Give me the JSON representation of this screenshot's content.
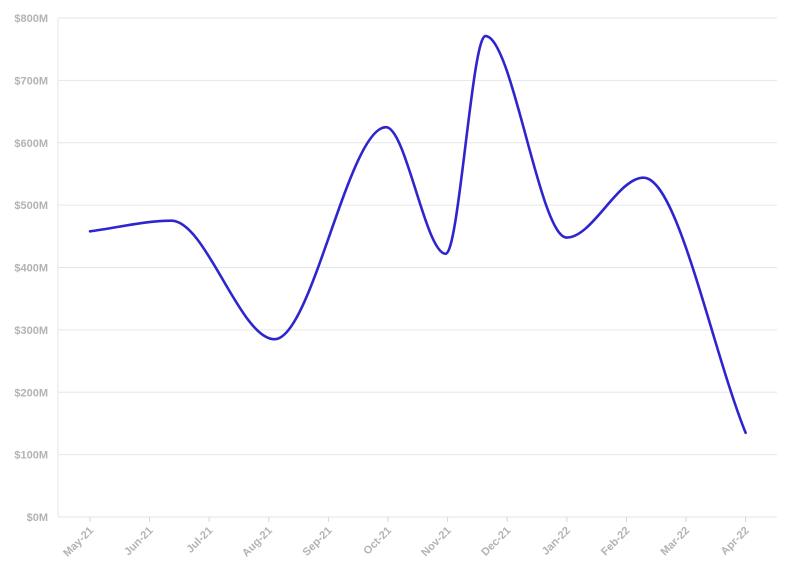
{
  "chart_data": {
    "type": "line",
    "title": "",
    "xlabel": "",
    "ylabel": "",
    "categories": [
      "May-21",
      "Jun-21",
      "Jul-21",
      "Aug-21",
      "Sep-21",
      "Oct-21",
      "Nov-21",
      "Dec-21",
      "Jan-22",
      "Feb-22",
      "Mar-22",
      "Apr-22"
    ],
    "x_tick_labels": [
      "May-21",
      "Jun-21",
      "Jul-21",
      "Aug-21",
      "Sep-21",
      "Oct-21",
      "Nov-21",
      "Dec-21",
      "Jan-22",
      "Feb-22",
      "Mar-22",
      "Apr-22"
    ],
    "y_tick_labels": [
      "$0M",
      "$100M",
      "$200M",
      "$300M",
      "$400M",
      "$500M",
      "$600M",
      "$700M",
      "$800M"
    ],
    "y_ticks": [
      0,
      100,
      200,
      300,
      400,
      500,
      600,
      700,
      800
    ],
    "ylim": [
      0,
      800
    ],
    "grid": true,
    "legend": "none",
    "series": [
      {
        "x": [
          "2021-05-01",
          "2021-06-12",
          "2021-08-04",
          "2021-09-30",
          "2021-10-31",
          "2021-11-20",
          "2022-01-01",
          "2022-02-09",
          "2022-04-01"
        ],
        "values": [
          458,
          475,
          285,
          625,
          422,
          771,
          448,
          544,
          135
        ],
        "color": "#2f25cf"
      }
    ]
  }
}
